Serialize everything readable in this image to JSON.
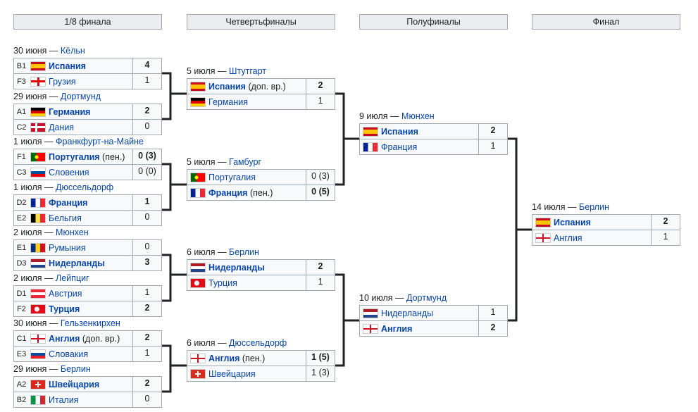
{
  "headers": [
    "1/8 финала",
    "Четвертьфиналы",
    "Полуфиналы",
    "Финал"
  ],
  "rounds": [
    [
      {
        "date": "30 июня",
        "city": "Кёльн",
        "teams": [
          {
            "seed": "B1",
            "flag": "ESP",
            "name": "Испания",
            "note": "",
            "score": "4",
            "winner": true
          },
          {
            "seed": "F3",
            "flag": "GEO",
            "name": "Грузия",
            "note": "",
            "score": "1",
            "winner": false
          }
        ]
      },
      {
        "date": "29 июня",
        "city": "Дортмунд",
        "teams": [
          {
            "seed": "A1",
            "flag": "GER",
            "name": "Германия",
            "note": "",
            "score": "2",
            "winner": true
          },
          {
            "seed": "C2",
            "flag": "DEN",
            "name": "Дания",
            "note": "",
            "score": "0",
            "winner": false
          }
        ]
      },
      {
        "date": "1 июля",
        "city": "Франкфурт-на-Майне",
        "teams": [
          {
            "seed": "F1",
            "flag": "POR",
            "name": "Португалия",
            "note": "(пен.)",
            "score": "0 (3)",
            "winner": true
          },
          {
            "seed": "C3",
            "flag": "SVN",
            "name": "Словения",
            "note": "",
            "score": "0 (0)",
            "winner": false
          }
        ]
      },
      {
        "date": "1 июля",
        "city": "Дюссельдорф",
        "teams": [
          {
            "seed": "D2",
            "flag": "FRA",
            "name": "Франция",
            "note": "",
            "score": "1",
            "winner": true
          },
          {
            "seed": "E2",
            "flag": "BEL",
            "name": "Бельгия",
            "note": "",
            "score": "0",
            "winner": false
          }
        ]
      },
      {
        "date": "2 июля",
        "city": "Мюнхен",
        "teams": [
          {
            "seed": "E1",
            "flag": "ROU",
            "name": "Румыния",
            "note": "",
            "score": "0",
            "winner": false
          },
          {
            "seed": "D3",
            "flag": "NED",
            "name": "Нидерланды",
            "note": "",
            "score": "3",
            "winner": true
          }
        ]
      },
      {
        "date": "2 июля",
        "city": "Лейпциг",
        "teams": [
          {
            "seed": "D1",
            "flag": "AUT",
            "name": "Австрия",
            "note": "",
            "score": "1",
            "winner": false
          },
          {
            "seed": "F2",
            "flag": "TUR",
            "name": "Турция",
            "note": "",
            "score": "2",
            "winner": true
          }
        ]
      },
      {
        "date": "30 июня",
        "city": "Гельзенкирхен",
        "teams": [
          {
            "seed": "C1",
            "flag": "ENG",
            "name": "Англия",
            "note": "(доп. вр.)",
            "score": "2",
            "winner": true
          },
          {
            "seed": "E3",
            "flag": "SVK",
            "name": "Словакия",
            "note": "",
            "score": "1",
            "winner": false
          }
        ]
      },
      {
        "date": "29 июня",
        "city": "Берлин",
        "teams": [
          {
            "seed": "A2",
            "flag": "SUI",
            "name": "Швейцария",
            "note": "",
            "score": "2",
            "winner": true
          },
          {
            "seed": "B2",
            "flag": "ITA",
            "name": "Италия",
            "note": "",
            "score": "0",
            "winner": false
          }
        ]
      }
    ],
    [
      {
        "date": "5 июля",
        "city": "Штутгарт",
        "teams": [
          {
            "flag": "ESP",
            "name": "Испания",
            "note": "(доп. вр.)",
            "score": "2",
            "winner": true
          },
          {
            "flag": "GER",
            "name": "Германия",
            "note": "",
            "score": "1",
            "winner": false
          }
        ]
      },
      {
        "date": "5 июля",
        "city": "Гамбург",
        "teams": [
          {
            "flag": "POR",
            "name": "Португалия",
            "note": "",
            "score": "0 (3)",
            "winner": false
          },
          {
            "flag": "FRA",
            "name": "Франция",
            "note": "(пен.)",
            "score": "0 (5)",
            "winner": true
          }
        ]
      },
      {
        "date": "6 июля",
        "city": "Берлин",
        "teams": [
          {
            "flag": "NED",
            "name": "Нидерланды",
            "note": "",
            "score": "2",
            "winner": true
          },
          {
            "flag": "TUR",
            "name": "Турция",
            "note": "",
            "score": "1",
            "winner": false
          }
        ]
      },
      {
        "date": "6 июля",
        "city": "Дюссельдорф",
        "teams": [
          {
            "flag": "ENG",
            "name": "Англия",
            "note": "(пен.)",
            "score": "1 (5)",
            "winner": true
          },
          {
            "flag": "SUI",
            "name": "Швейцария",
            "note": "",
            "score": "1 (3)",
            "winner": false
          }
        ]
      }
    ],
    [
      {
        "date": "9 июля",
        "city": "Мюнхен",
        "teams": [
          {
            "flag": "ESP",
            "name": "Испания",
            "note": "",
            "score": "2",
            "winner": true
          },
          {
            "flag": "FRA",
            "name": "Франция",
            "note": "",
            "score": "1",
            "winner": false
          }
        ]
      },
      {
        "date": "10 июля",
        "city": "Дортмунд",
        "teams": [
          {
            "flag": "NED",
            "name": "Нидерланды",
            "note": "",
            "score": "1",
            "winner": false
          },
          {
            "flag": "ENG",
            "name": "Англия",
            "note": "",
            "score": "2",
            "winner": true
          }
        ]
      }
    ],
    [
      {
        "date": "14 июля",
        "city": "Берлин",
        "teams": [
          {
            "flag": "ESP",
            "name": "Испания",
            "note": "",
            "score": "2",
            "winner": true
          },
          {
            "flag": "ENG",
            "name": "Англия",
            "note": "",
            "score": "1",
            "winner": false
          }
        ]
      }
    ]
  ],
  "date_separator": " — "
}
